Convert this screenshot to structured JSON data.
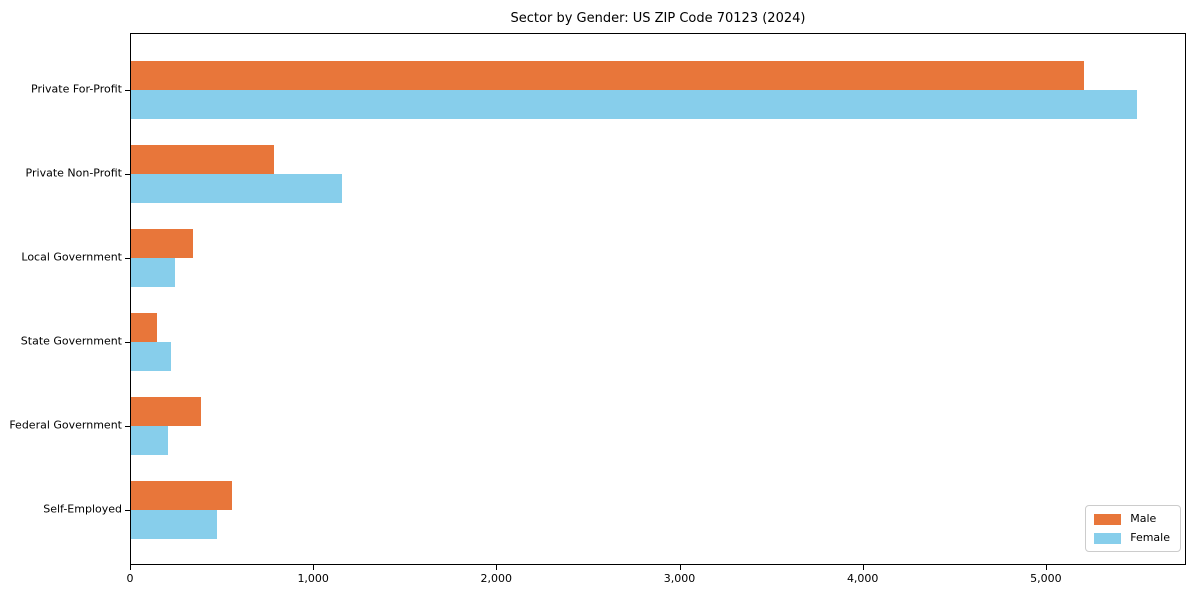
{
  "chart_data": {
    "type": "bar",
    "orientation": "horizontal",
    "title": "Sector by Gender: US ZIP Code 70123 (2024)",
    "categories": [
      "Private For-Profit",
      "Private Non-Profit",
      "Local Government",
      "State Government",
      "Federal Government",
      "Self-Employed"
    ],
    "series": [
      {
        "name": "Male",
        "color": "#e8763a",
        "values": [
          5200,
          780,
          340,
          140,
          380,
          550
        ]
      },
      {
        "name": "Female",
        "color": "#87ceeb",
        "values": [
          5490,
          1150,
          240,
          220,
          200,
          470
        ]
      }
    ],
    "xlim": [
      0,
      5765
    ],
    "xticks": {
      "values": [
        0,
        1000,
        2000,
        3000,
        4000,
        5000
      ],
      "labels": [
        "0",
        "1,000",
        "2,000",
        "3,000",
        "4,000",
        "5,000"
      ]
    },
    "legend": {
      "position": "lower right",
      "entries": [
        "Male",
        "Female"
      ]
    },
    "grid": false,
    "background": "#ffffff"
  }
}
